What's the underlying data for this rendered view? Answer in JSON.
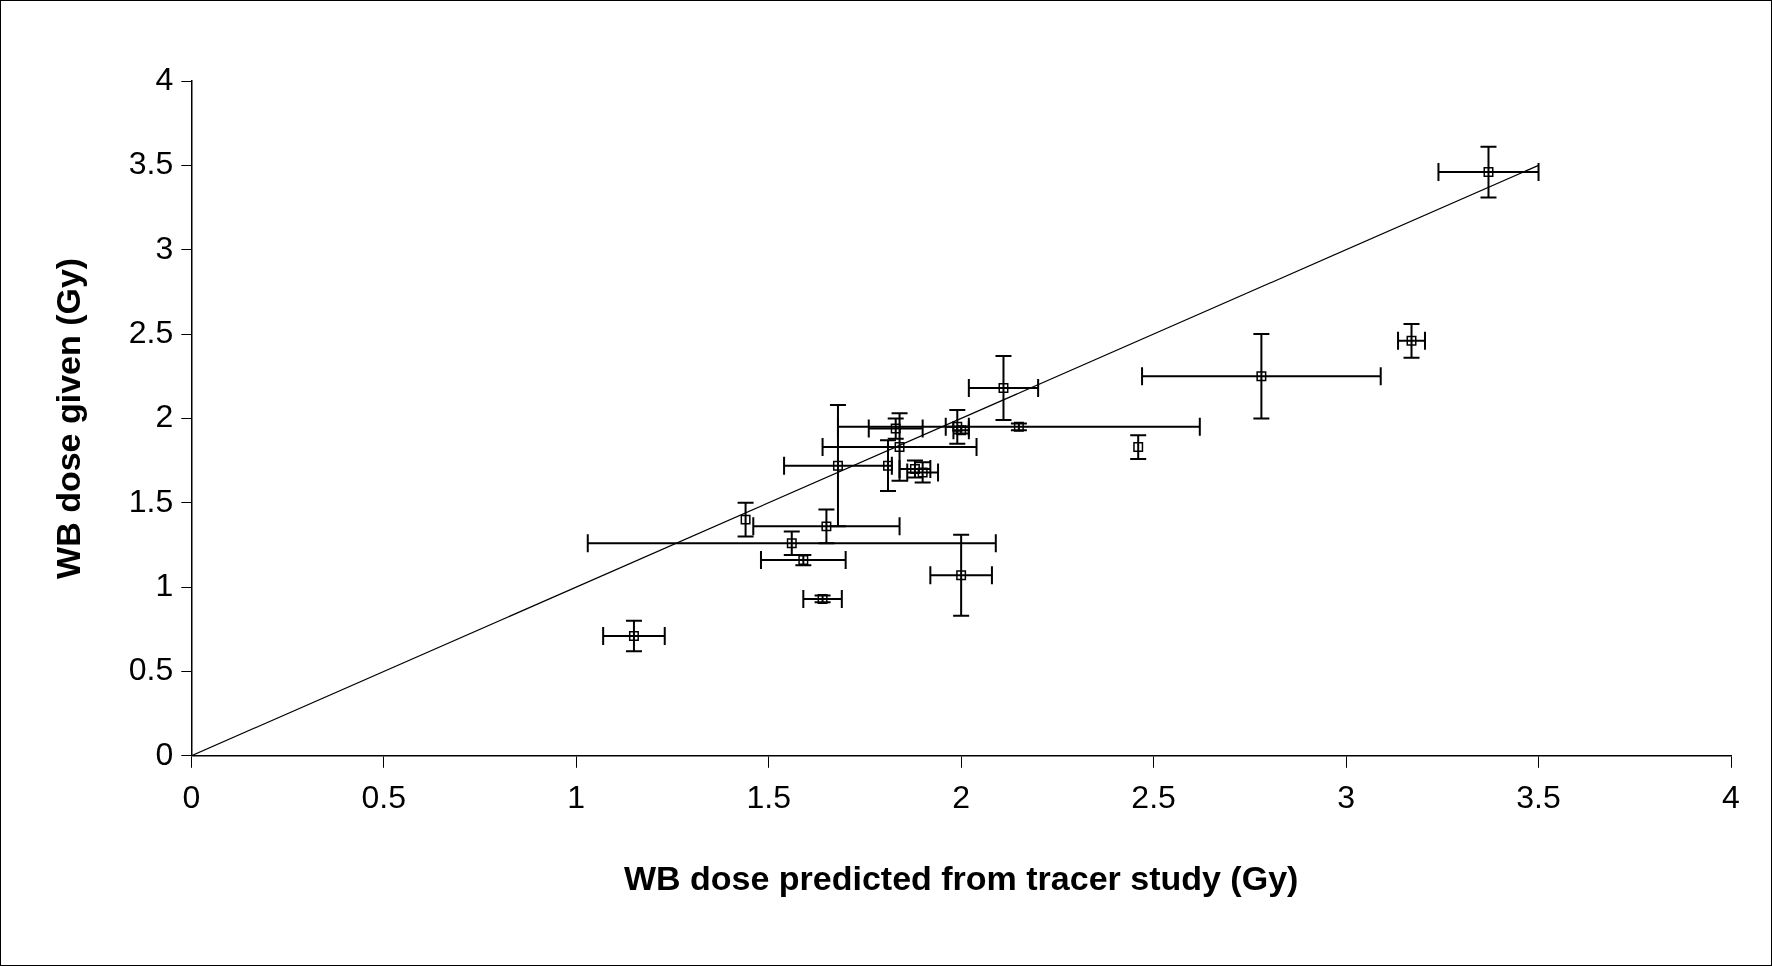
{
  "chart_data": {
    "type": "scatter",
    "xlabel": "WB dose predicted from tracer study (Gy)",
    "ylabel": "WB dose given (Gy)",
    "xlim": [
      0,
      4
    ],
    "xticks": [
      0,
      0.5,
      1,
      1.5,
      2,
      2.5,
      3,
      3.5,
      4
    ],
    "ylim": [
      0,
      4
    ],
    "yticks": [
      0,
      0.5,
      1,
      1.5,
      2,
      2.5,
      3,
      3.5,
      4
    ],
    "grid": false,
    "legend": false,
    "marker": "square",
    "series": [
      {
        "color": "#000000",
        "x": [
          3.37,
          3.17,
          2.78,
          2.46,
          2.15,
          2.11,
          1.99,
          2.0,
          1.83,
          1.84,
          1.68,
          1.81,
          1.9,
          1.88,
          1.44,
          1.65,
          1.56,
          1.59,
          2.0,
          1.64,
          1.15
        ],
        "values": [
          3.46,
          2.46,
          2.25,
          1.83,
          1.95,
          2.18,
          1.95,
          1.93,
          1.94,
          1.83,
          1.72,
          1.72,
          1.68,
          1.7,
          1.4,
          1.36,
          1.26,
          1.16,
          1.07,
          0.93,
          0.71
        ],
        "xerrors": [
          0.13,
          0.035,
          0.31,
          null,
          0.47,
          0.09,
          0.03,
          0.02,
          0.07,
          0.2,
          0.14,
          null,
          0.04,
          0.04,
          null,
          0.19,
          0.53,
          0.11,
          0.08,
          0.05,
          0.08
        ],
        "errors": [
          0.15,
          0.1,
          0.25,
          0.07,
          0.02,
          0.19,
          0.1,
          0.02,
          0.06,
          0.2,
          0.36,
          0.15,
          0.06,
          0.05,
          0.1,
          0.1,
          0.07,
          0.03,
          0.24,
          0.02,
          0.09
        ]
      },
      {
        "type": "line",
        "color": "#000000",
        "marker": "none",
        "x": [
          0,
          3.5
        ],
        "values": [
          0,
          3.5
        ]
      }
    ]
  }
}
